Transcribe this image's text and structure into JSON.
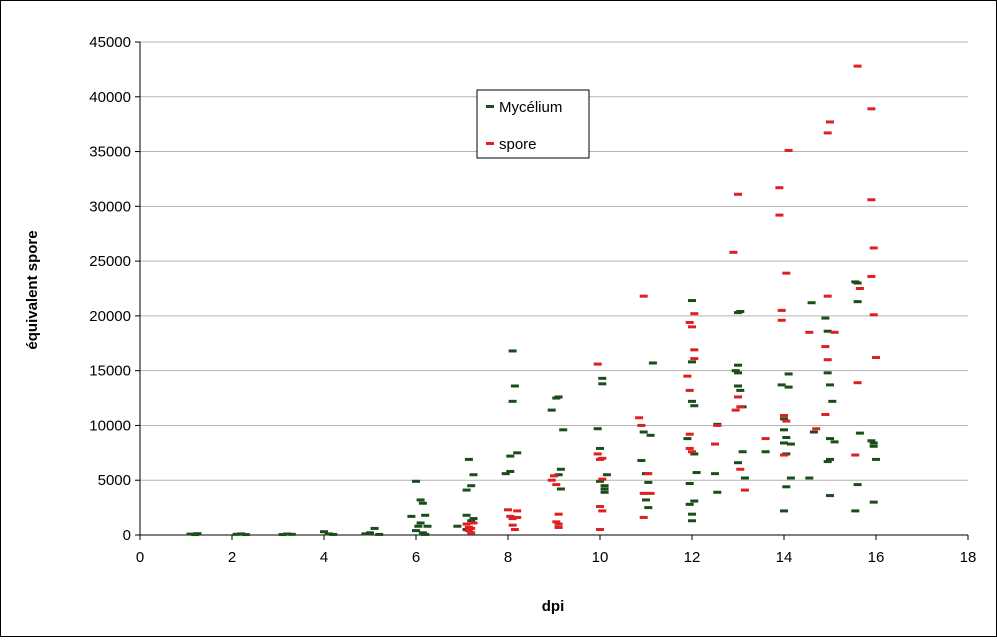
{
  "chart_data": {
    "type": "scatter",
    "title": "",
    "xlabel": "dpi",
    "ylabel": "équivalent spore",
    "xlim": [
      0,
      18
    ],
    "ylim": [
      0,
      45000
    ],
    "xticks": [
      0,
      2,
      4,
      6,
      8,
      10,
      12,
      14,
      16,
      18
    ],
    "yticks": [
      0,
      5000,
      10000,
      15000,
      20000,
      25000,
      30000,
      35000,
      40000,
      45000
    ],
    "grid": "horizontal",
    "legend_position": "top-center",
    "series": [
      {
        "name": "Mycélium",
        "color": "#1a4d1a",
        "points": [
          [
            1.1,
            80
          ],
          [
            1.2,
            40
          ],
          [
            1.25,
            120
          ],
          [
            2.1,
            60
          ],
          [
            2.2,
            100
          ],
          [
            2.3,
            40
          ],
          [
            3.1,
            40
          ],
          [
            3.2,
            90
          ],
          [
            3.3,
            60
          ],
          [
            4.0,
            300
          ],
          [
            4.1,
            100
          ],
          [
            4.2,
            50
          ],
          [
            4.9,
            100
          ],
          [
            5.0,
            200
          ],
          [
            5.1,
            600
          ],
          [
            5.2,
            50
          ],
          [
            5.9,
            1700
          ],
          [
            6.0,
            4900
          ],
          [
            6.0,
            400
          ],
          [
            6.05,
            800
          ],
          [
            6.1,
            3200
          ],
          [
            6.15,
            2900
          ],
          [
            6.1,
            1100
          ],
          [
            6.15,
            200
          ],
          [
            6.2,
            1800
          ],
          [
            6.25,
            800
          ],
          [
            6.2,
            50
          ],
          [
            6.9,
            800
          ],
          [
            7.1,
            1800
          ],
          [
            7.15,
            6900
          ],
          [
            7.1,
            4100
          ],
          [
            7.2,
            4500
          ],
          [
            7.25,
            5500
          ],
          [
            7.2,
            1300
          ],
          [
            7.25,
            1500
          ],
          [
            7.1,
            500
          ],
          [
            7.95,
            5600
          ],
          [
            8.05,
            7200
          ],
          [
            8.05,
            5800
          ],
          [
            8.1,
            16800
          ],
          [
            8.1,
            12200
          ],
          [
            8.15,
            13600
          ],
          [
            8.2,
            7500
          ],
          [
            8.1,
            1600
          ],
          [
            8.95,
            11400
          ],
          [
            9.05,
            12500
          ],
          [
            9.1,
            12600
          ],
          [
            9.1,
            5500
          ],
          [
            9.15,
            6000
          ],
          [
            9.2,
            9600
          ],
          [
            9.15,
            4200
          ],
          [
            9.1,
            700
          ],
          [
            9.95,
            9700
          ],
          [
            10.0,
            7900
          ],
          [
            10.05,
            14300
          ],
          [
            10.05,
            13800
          ],
          [
            10.0,
            4900
          ],
          [
            10.1,
            4200
          ],
          [
            10.1,
            4500
          ],
          [
            10.1,
            3900
          ],
          [
            10.15,
            5500
          ],
          [
            10.9,
            6800
          ],
          [
            10.95,
            9400
          ],
          [
            11.0,
            5600
          ],
          [
            11.05,
            4800
          ],
          [
            11.0,
            3200
          ],
          [
            11.05,
            2500
          ],
          [
            11.1,
            9100
          ],
          [
            11.15,
            15700
          ],
          [
            11.9,
            8800
          ],
          [
            11.95,
            4700
          ],
          [
            11.95,
            2800
          ],
          [
            12.0,
            21400
          ],
          [
            12.0,
            15800
          ],
          [
            12.0,
            12200
          ],
          [
            12.05,
            11800
          ],
          [
            12.05,
            7400
          ],
          [
            12.1,
            5700
          ],
          [
            12.05,
            3100
          ],
          [
            12.0,
            1900
          ],
          [
            12.0,
            1300
          ],
          [
            12.5,
            5600
          ],
          [
            12.55,
            3900
          ],
          [
            12.55,
            10100
          ],
          [
            12.95,
            15000
          ],
          [
            13.0,
            15500
          ],
          [
            13.0,
            14800
          ],
          [
            13.0,
            13600
          ],
          [
            13.05,
            13200
          ],
          [
            13.05,
            20400
          ],
          [
            13.0,
            20300
          ],
          [
            13.1,
            11700
          ],
          [
            13.1,
            7600
          ],
          [
            13.15,
            5200
          ],
          [
            13.0,
            6600
          ],
          [
            13.6,
            7600
          ],
          [
            13.95,
            13700
          ],
          [
            14.0,
            10900
          ],
          [
            14.0,
            10600
          ],
          [
            14.0,
            9600
          ],
          [
            14.05,
            8900
          ],
          [
            14.0,
            8400
          ],
          [
            14.05,
            7400
          ],
          [
            14.1,
            14700
          ],
          [
            14.1,
            13500
          ],
          [
            14.15,
            8300
          ],
          [
            14.15,
            5200
          ],
          [
            14.05,
            4400
          ],
          [
            14.0,
            2200
          ],
          [
            14.55,
            5200
          ],
          [
            14.6,
            21200
          ],
          [
            14.65,
            9400
          ],
          [
            14.9,
            19800
          ],
          [
            14.95,
            14800
          ],
          [
            15.0,
            13700
          ],
          [
            14.95,
            18600
          ],
          [
            15.05,
            12200
          ],
          [
            15.0,
            8800
          ],
          [
            15.1,
            8500
          ],
          [
            15.0,
            6900
          ],
          [
            14.95,
            6700
          ],
          [
            15.0,
            3600
          ],
          [
            15.55,
            23100
          ],
          [
            15.6,
            21300
          ],
          [
            15.65,
            9300
          ],
          [
            15.6,
            4600
          ],
          [
            15.55,
            2200
          ],
          [
            15.6,
            23000
          ],
          [
            15.9,
            8600
          ],
          [
            15.95,
            8400
          ],
          [
            15.95,
            8100
          ],
          [
            16.0,
            6900
          ],
          [
            15.95,
            3000
          ]
        ]
      },
      {
        "name": "spore",
        "color": "#e02020",
        "points": [
          [
            7.1,
            1000
          ],
          [
            7.15,
            700
          ],
          [
            7.15,
            400
          ],
          [
            7.2,
            600
          ],
          [
            7.2,
            200
          ],
          [
            7.25,
            1100
          ],
          [
            8.0,
            2300
          ],
          [
            8.05,
            1700
          ],
          [
            8.1,
            1500
          ],
          [
            8.1,
            900
          ],
          [
            8.15,
            500
          ],
          [
            8.2,
            2200
          ],
          [
            8.2,
            1600
          ],
          [
            8.95,
            5000
          ],
          [
            9.0,
            5400
          ],
          [
            9.05,
            4600
          ],
          [
            9.05,
            1200
          ],
          [
            9.1,
            1900
          ],
          [
            9.1,
            1000
          ],
          [
            9.1,
            700
          ],
          [
            9.95,
            15600
          ],
          [
            9.95,
            7400
          ],
          [
            10.0,
            6900
          ],
          [
            10.0,
            2600
          ],
          [
            10.05,
            5100
          ],
          [
            10.05,
            2200
          ],
          [
            10.0,
            500
          ],
          [
            10.05,
            7000
          ],
          [
            10.85,
            10700
          ],
          [
            10.9,
            10000
          ],
          [
            10.95,
            21800
          ],
          [
            10.95,
            3800
          ],
          [
            10.95,
            1600
          ],
          [
            11.05,
            5600
          ],
          [
            11.1,
            3800
          ],
          [
            11.9,
            14500
          ],
          [
            11.95,
            19400
          ],
          [
            11.95,
            13200
          ],
          [
            11.95,
            9200
          ],
          [
            11.95,
            7900
          ],
          [
            12.0,
            19000
          ],
          [
            12.0,
            7600
          ],
          [
            12.05,
            20200
          ],
          [
            12.05,
            16900
          ],
          [
            12.05,
            16100
          ],
          [
            12.5,
            8300
          ],
          [
            12.55,
            10000
          ],
          [
            12.9,
            25800
          ],
          [
            12.95,
            11400
          ],
          [
            13.0,
            31100
          ],
          [
            13.0,
            12600
          ],
          [
            13.05,
            6000
          ],
          [
            13.05,
            11700
          ],
          [
            13.15,
            4100
          ],
          [
            13.6,
            8800
          ],
          [
            13.9,
            31700
          ],
          [
            13.9,
            29200
          ],
          [
            13.95,
            20500
          ],
          [
            13.95,
            19600
          ],
          [
            14.0,
            10900
          ],
          [
            14.0,
            7300
          ],
          [
            14.05,
            23900
          ],
          [
            14.1,
            35100
          ],
          [
            14.05,
            10400
          ],
          [
            14.55,
            18500
          ],
          [
            14.7,
            9700
          ],
          [
            14.9,
            17200
          ],
          [
            14.9,
            11000
          ],
          [
            14.95,
            21800
          ],
          [
            14.95,
            16000
          ],
          [
            14.95,
            36700
          ],
          [
            15.0,
            37700
          ],
          [
            15.1,
            18500
          ],
          [
            15.6,
            42800
          ],
          [
            15.6,
            13900
          ],
          [
            15.55,
            7300
          ],
          [
            15.65,
            22500
          ],
          [
            15.9,
            38900
          ],
          [
            15.9,
            30600
          ],
          [
            15.95,
            26200
          ],
          [
            15.9,
            23600
          ],
          [
            15.95,
            20100
          ],
          [
            16.0,
            16200
          ]
        ]
      }
    ]
  }
}
